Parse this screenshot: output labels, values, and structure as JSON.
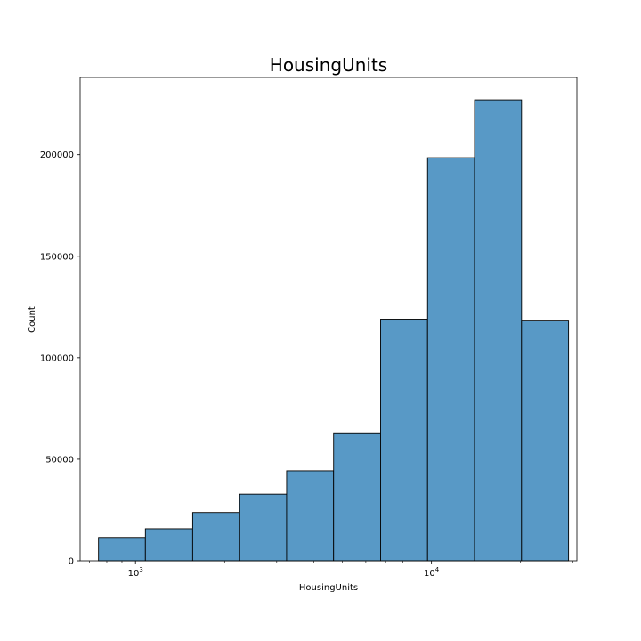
{
  "chart_data": {
    "type": "bar",
    "title": "HousingUnits",
    "xlabel": "HousingUnits",
    "ylabel": "Count",
    "x_scale": "log10",
    "xlim": [
      650,
      31000
    ],
    "ylim": [
      0,
      238000
    ],
    "bin_edges": [
      750,
      1080,
      1560,
      2250,
      3240,
      4670,
      6730,
      9700,
      13980,
      20150,
      29050
    ],
    "values": [
      11500,
      15800,
      23800,
      32800,
      44300,
      63000,
      119000,
      198500,
      227000,
      118500
    ],
    "y_ticks": [
      0,
      50000,
      100000,
      150000,
      200000
    ],
    "x_major_ticks": [
      {
        "value": 1000,
        "base": "10",
        "exp": "3"
      },
      {
        "value": 10000,
        "base": "10",
        "exp": "4"
      }
    ],
    "x_minor_ticks": [
      700,
      800,
      900,
      2000,
      3000,
      4000,
      5000,
      6000,
      7000,
      8000,
      9000,
      20000,
      30000
    ],
    "bar_color": "#5899c6",
    "edge_color": "#000000",
    "grid": false
  }
}
